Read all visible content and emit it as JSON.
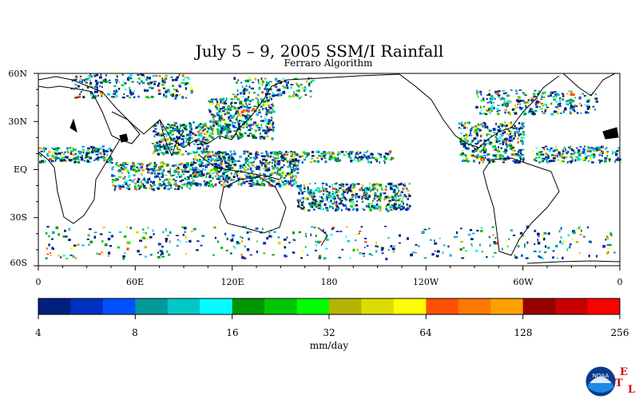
{
  "title": "July 5 – 9, 2005 SSM/I Rainfall",
  "subtitle": "Ferraro Algorithm",
  "lat_labels": [
    "60N",
    "30N",
    "EQ",
    "30S",
    "60S"
  ],
  "lon_labels": [
    "0",
    "60E",
    "120E",
    "180",
    "120W",
    "60W",
    "0"
  ],
  "colorbar": {
    "tick_labels": [
      "4",
      "8",
      "16",
      "32",
      "64",
      "128",
      "256"
    ],
    "colors": [
      "#001f7f",
      "#0030bf",
      "#0050ff",
      "#009999",
      "#00c8c8",
      "#00ffff",
      "#009600",
      "#00c800",
      "#00ff00",
      "#b4b400",
      "#dcdc00",
      "#ffff00",
      "#ff5000",
      "#ff7800",
      "#ffa000",
      "#960000",
      "#c80000",
      "#ff0000"
    ],
    "units": "mm/day"
  },
  "logo": {
    "name": "noaa-logo",
    "text": "NOAA",
    "etl": [
      "E",
      "T",
      "L"
    ]
  },
  "map": {
    "lon_range": [
      0,
      360
    ],
    "lat_range": [
      -60,
      60
    ],
    "rain_regions": [
      {
        "lon": [
          0,
          45
        ],
        "lat": [
          5,
          15
        ],
        "density": 0.6
      },
      {
        "lon": [
          45,
          95
        ],
        "lat": [
          -12,
          5
        ],
        "density": 0.55
      },
      {
        "lon": [
          70,
          105
        ],
        "lat": [
          10,
          30
        ],
        "density": 0.6
      },
      {
        "lon": [
          95,
          160
        ],
        "lat": [
          -10,
          12
        ],
        "density": 0.65
      },
      {
        "lon": [
          105,
          145
        ],
        "lat": [
          20,
          45
        ],
        "density": 0.6
      },
      {
        "lon": [
          150,
          220
        ],
        "lat": [
          5,
          12
        ],
        "density": 0.5
      },
      {
        "lon": [
          160,
          230
        ],
        "lat": [
          -25,
          -8
        ],
        "density": 0.55
      },
      {
        "lon": [
          260,
          300
        ],
        "lat": [
          5,
          30
        ],
        "density": 0.55
      },
      {
        "lon": [
          305,
          360
        ],
        "lat": [
          5,
          15
        ],
        "density": 0.5
      },
      {
        "lon": [
          270,
          345
        ],
        "lat": [
          35,
          50
        ],
        "density": 0.35
      },
      {
        "lon": [
          20,
          95
        ],
        "lat": [
          45,
          60
        ],
        "density": 0.3
      },
      {
        "lon": [
          120,
          170
        ],
        "lat": [
          45,
          58
        ],
        "density": 0.3
      },
      {
        "lon": [
          0,
          360
        ],
        "lat": [
          -55,
          -35
        ],
        "density": 0.08
      }
    ]
  }
}
